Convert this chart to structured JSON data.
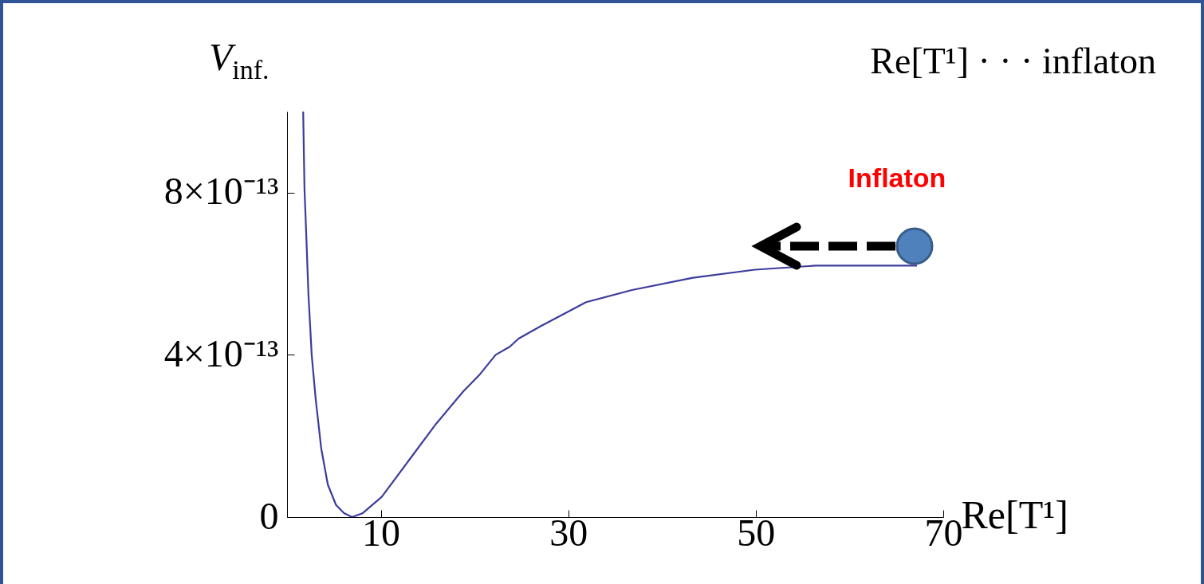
{
  "chart_data": {
    "type": "line",
    "title": "Re[T¹] · · · inflaton",
    "xlabel": "Re[T¹]",
    "ylabel": "V$_{inf.}$",
    "annotations": [
      "Inflaton"
    ],
    "xlim": [
      0,
      70
    ],
    "xticks": [
      10,
      30,
      50,
      70
    ],
    "ylim": [
      0,
      1e-12
    ],
    "yticks": [
      0,
      {
        "value": 4e-13,
        "label": "4×10⁻¹³"
      },
      {
        "value": 8e-13,
        "label": "8×10⁻¹³"
      }
    ],
    "grid": false,
    "x": [
      1.72,
      1.86,
      2.06,
      2.28,
      2.63,
      3.06,
      3.64,
      4.35,
      5.22,
      6.07,
      6.94,
      8.09,
      10.1,
      13.0,
      15.9,
      18.8,
      20.5,
      22.25,
      23.75,
      24.7,
      27.0,
      31.9,
      36.8,
      43.3,
      49.9,
      56.4,
      67.2
    ],
    "series": [
      {
        "color": "#3c3c9c",
        "values": [
          1e-12,
          8.1e-13,
          6.9e-13,
          5.5e-13,
          4e-13,
          2.9e-13,
          1.7e-13,
          8e-14,
          3e-14,
          1e-14,
          0,
          1e-14,
          5e-14,
          1.4e-13,
          2.3e-13,
          3.1e-13,
          3.5e-13,
          4e-13,
          4.2e-13,
          4.4e-13,
          4.7e-13,
          5.3e-13,
          5.6e-13,
          5.9e-13,
          6.1e-13,
          6.2e-13,
          6.2e-13
        ]
      }
    ]
  }
}
